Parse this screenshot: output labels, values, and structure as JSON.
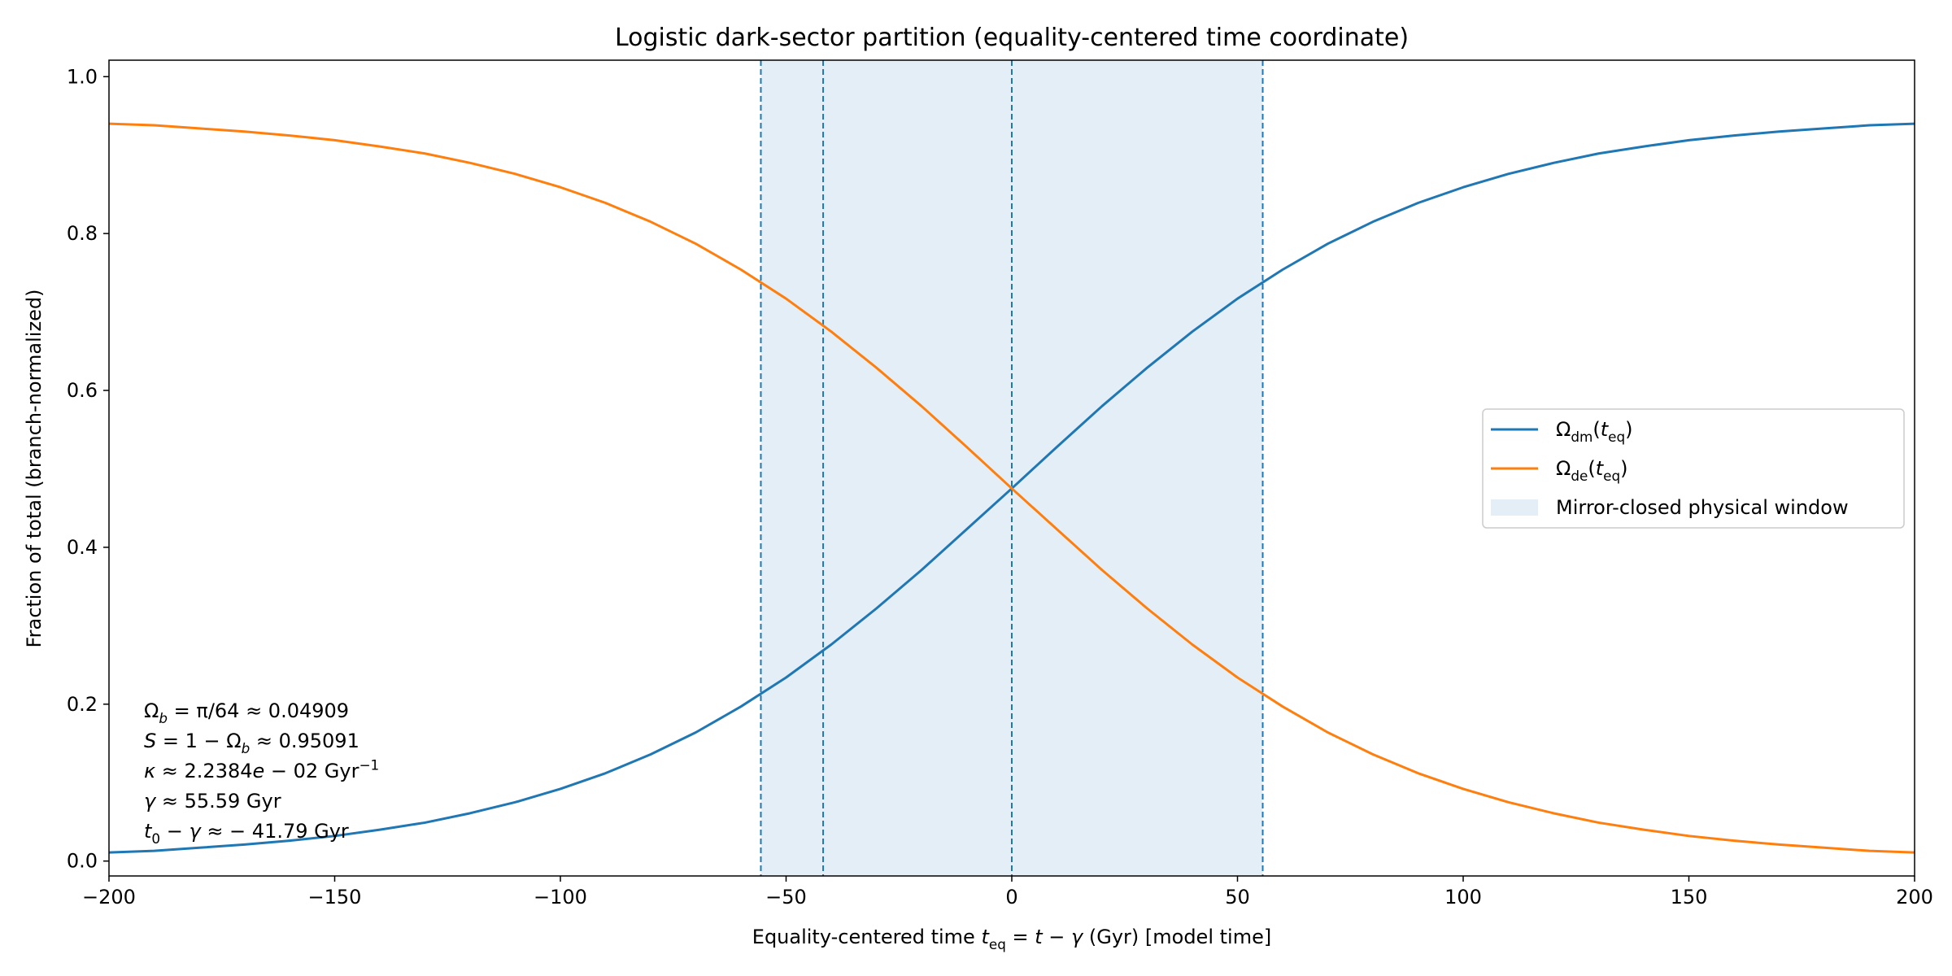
{
  "chart_data": {
    "type": "line",
    "title": "Logistic dark-sector partition (equality-centered time coordinate)",
    "x_label": [
      {
        "text": "Equality-centered time "
      },
      {
        "text": "t",
        "italic": true
      },
      {
        "text": "eq",
        "shift": "sub"
      },
      {
        "text": " = "
      },
      {
        "text": "t",
        "italic": true
      },
      {
        "text": " − "
      },
      {
        "text": "γ",
        "italic": true
      },
      {
        "text": " (Gyr)  [model time]"
      }
    ],
    "y_label": "Fraction of total (branch-normalized)",
    "x": [
      -200,
      -190,
      -180,
      -170,
      -160,
      -150,
      -140,
      -130,
      -120,
      -110,
      -100,
      -90,
      -80,
      -70,
      -60,
      -50,
      -40,
      -30,
      -20,
      -10,
      0,
      10,
      20,
      30,
      40,
      50,
      60,
      70,
      80,
      90,
      100,
      110,
      120,
      130,
      140,
      150,
      160,
      170,
      180,
      190,
      200
    ],
    "series": [
      {
        "name": [
          {
            "text": "Ω"
          },
          {
            "text": "dm",
            "shift": "sub"
          },
          {
            "text": "("
          },
          {
            "text": "t",
            "italic": true
          },
          {
            "text": "eq",
            "shift": "sub"
          },
          {
            "text": ")"
          }
        ],
        "color": "#1f77b4",
        "values": [
          0.011,
          0.013,
          0.017,
          0.021,
          0.026,
          0.032,
          0.04,
          0.049,
          0.061,
          0.075,
          0.092,
          0.112,
          0.136,
          0.164,
          0.197,
          0.234,
          0.276,
          0.322,
          0.371,
          0.423,
          0.475,
          0.528,
          0.58,
          0.629,
          0.675,
          0.717,
          0.754,
          0.787,
          0.815,
          0.839,
          0.859,
          0.876,
          0.89,
          0.902,
          0.911,
          0.919,
          0.925,
          0.93,
          0.934,
          0.938,
          0.94
        ]
      },
      {
        "name": [
          {
            "text": "Ω"
          },
          {
            "text": "de",
            "shift": "sub"
          },
          {
            "text": "("
          },
          {
            "text": "t",
            "italic": true
          },
          {
            "text": "eq",
            "shift": "sub"
          },
          {
            "text": ")"
          }
        ],
        "color": "#ff7f0e",
        "values": [
          0.94,
          0.938,
          0.934,
          0.93,
          0.925,
          0.919,
          0.911,
          0.902,
          0.89,
          0.876,
          0.859,
          0.839,
          0.815,
          0.787,
          0.754,
          0.717,
          0.675,
          0.629,
          0.58,
          0.528,
          0.475,
          0.423,
          0.371,
          0.322,
          0.276,
          0.234,
          0.197,
          0.164,
          0.136,
          0.112,
          0.092,
          0.075,
          0.061,
          0.049,
          0.04,
          0.032,
          0.026,
          0.021,
          0.017,
          0.013,
          0.011
        ]
      }
    ],
    "shade": {
      "name": "Mirror-closed physical window",
      "range": [
        -55.59,
        55.59
      ],
      "color": "#1f77b4",
      "opacity": 0.12
    },
    "vlines": [
      -55.59,
      -41.79,
      0,
      55.59
    ],
    "vline_color": "#1f77b4",
    "annotation": [
      [
        {
          "text": "Ω"
        },
        {
          "text": "b",
          "shift": "sub",
          "italic": true
        },
        {
          "text": " = π/64 ≈ 0.04909"
        }
      ],
      [
        {
          "text": "S",
          "italic": true
        },
        {
          "text": " = 1 − Ω"
        },
        {
          "text": "b",
          "shift": "sub",
          "italic": true
        },
        {
          "text": " ≈ 0.95091"
        }
      ],
      [
        {
          "text": "κ",
          "italic": true
        },
        {
          "text": " ≈ 2.2384"
        },
        {
          "text": "e",
          "italic": true
        },
        {
          "text": " − 02 Gyr"
        },
        {
          "text": "−1",
          "shift": "sup"
        }
      ],
      [
        {
          "text": "γ",
          "italic": true
        },
        {
          "text": " ≈ 55.59 Gyr"
        }
      ],
      [
        {
          "text": "t",
          "italic": true
        },
        {
          "text": "0",
          "shift": "sub"
        },
        {
          "text": " − "
        },
        {
          "text": "γ",
          "italic": true
        },
        {
          "text": " ≈ − 41.79 Gyr"
        }
      ]
    ],
    "xlim": [
      -200,
      200
    ],
    "ylim": [
      -0.019,
      1.021
    ],
    "xticks": [
      {
        "value": -200,
        "label": "−200"
      },
      {
        "value": -150,
        "label": "−150"
      },
      {
        "value": -100,
        "label": "−100"
      },
      {
        "value": -50,
        "label": "−50"
      },
      0,
      50,
      100,
      150,
      200
    ],
    "yticks": [
      {
        "value": 0,
        "label": "0.0"
      },
      0.2,
      0.4,
      0.6,
      0.8,
      {
        "value": 1,
        "label": "1.0"
      }
    ],
    "legend": "right"
  }
}
